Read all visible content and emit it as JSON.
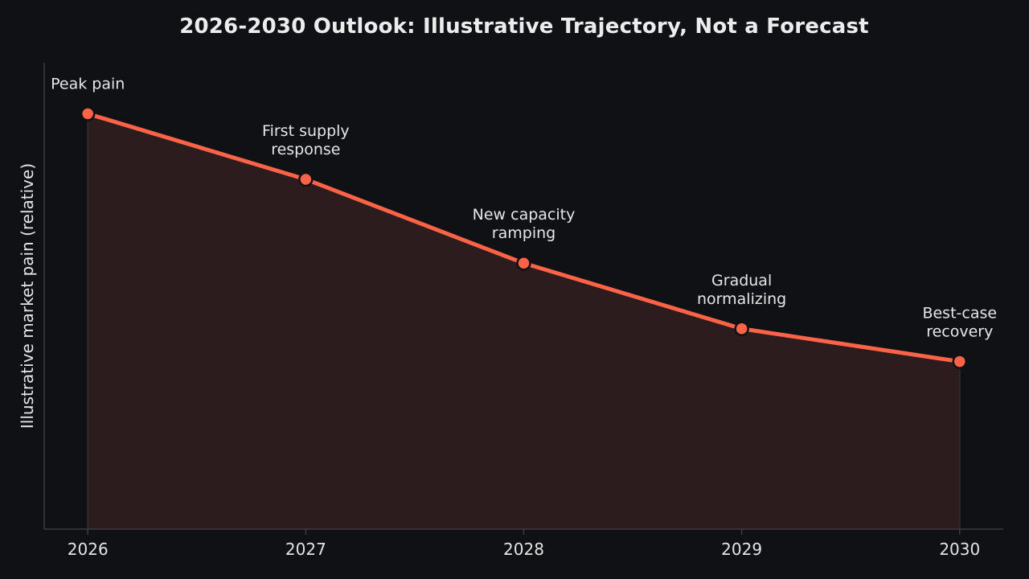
{
  "chart_data": {
    "type": "area",
    "title": "2026-2030 Outlook: Illustrative Trajectory, Not a Forecast",
    "xlabel": "",
    "ylabel": "Illustrative market pain (relative)",
    "x": [
      2026,
      2027,
      2028,
      2029,
      2030
    ],
    "x_tick_labels": [
      "2026",
      "2027",
      "2028",
      "2029",
      "2030"
    ],
    "y_ticks_shown": false,
    "series": [
      {
        "values": [
          100,
          82,
          59,
          41,
          32
        ],
        "annotations": [
          [
            "Peak pain"
          ],
          [
            "First supply",
            "response"
          ],
          [
            "New capacity",
            "ramping"
          ],
          [
            "Gradual",
            "normalizing"
          ],
          [
            "Best-case",
            "recovery"
          ]
        ]
      }
    ],
    "xlim": [
      2025.8,
      2030.2
    ],
    "ylim": [
      -14,
      114
    ],
    "grid": false,
    "legend": "none",
    "colors": {
      "line": "#ff6347",
      "fill": "#2d1c1d",
      "marker_edge": "#101115",
      "axis": "#3a3c42",
      "background": "#101115",
      "text": "#e6e6e6"
    }
  }
}
